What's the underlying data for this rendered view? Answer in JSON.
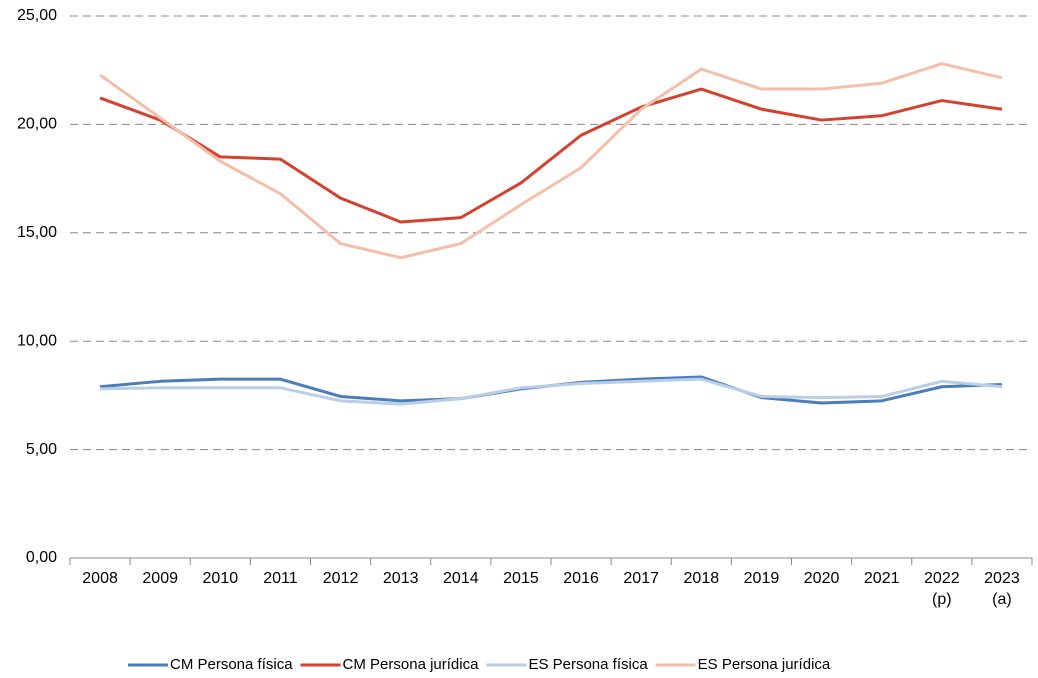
{
  "chart_data": {
    "type": "line",
    "categories": [
      "2008",
      "2009",
      "2010",
      "2011",
      "2012",
      "2013",
      "2014",
      "2015",
      "2016",
      "2017",
      "2018",
      "2019",
      "2020",
      "2021",
      "2022 (p)",
      "2023 (a)"
    ],
    "series": [
      {
        "name": "CM Persona física",
        "color": "#4a7ebb",
        "values": [
          7.9,
          8.15,
          8.25,
          8.25,
          7.45,
          7.25,
          7.35,
          7.8,
          8.1,
          8.25,
          8.35,
          7.4,
          7.15,
          7.25,
          7.9,
          8.0
        ]
      },
      {
        "name": "CM Persona jurídica",
        "color": "#d4412f",
        "values": [
          21.22,
          20.2,
          18.5,
          18.4,
          16.6,
          15.5,
          15.7,
          17.3,
          19.5,
          20.8,
          21.63,
          20.7,
          20.2,
          20.4,
          21.1,
          20.7
        ]
      },
      {
        "name": "ES Persona física",
        "color": "#b9cde8",
        "values": [
          7.8,
          7.85,
          7.85,
          7.85,
          7.25,
          7.1,
          7.35,
          7.85,
          8.05,
          8.15,
          8.25,
          7.45,
          7.4,
          7.45,
          8.15,
          7.9
        ]
      },
      {
        "name": "ES Persona jurídica",
        "color": "#f4bfa8",
        "values": [
          22.28,
          20.3,
          18.3,
          16.8,
          14.5,
          13.85,
          14.5,
          16.3,
          18.0,
          20.7,
          22.55,
          21.63,
          21.63,
          21.9,
          22.8,
          22.15
        ]
      }
    ],
    "ylim": [
      0,
      25
    ],
    "yticks": [
      {
        "value": 0,
        "label": "0,00"
      },
      {
        "value": 5,
        "label": "5,00"
      },
      {
        "value": 10,
        "label": "10,00"
      },
      {
        "value": 15,
        "label": "15,00"
      },
      {
        "value": 20,
        "label": "20,00"
      },
      {
        "value": 25,
        "label": "25,00"
      }
    ],
    "grid": true,
    "legend": "bottom"
  }
}
